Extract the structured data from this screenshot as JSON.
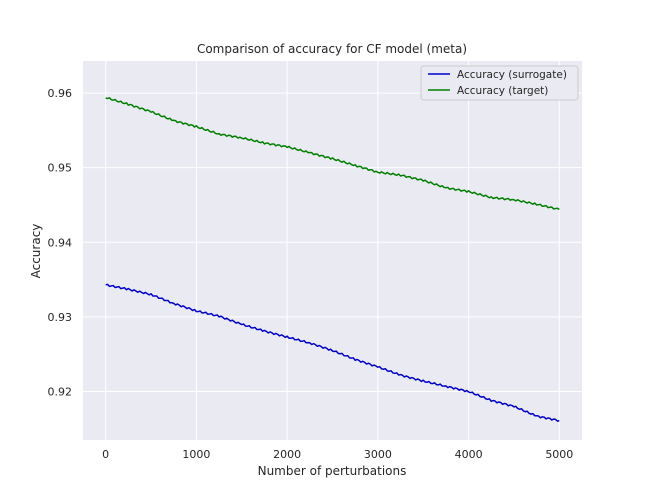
{
  "chart_data": {
    "type": "line",
    "title": "Comparison of accuracy for CF model (meta)",
    "xlabel": "Number of perturbations",
    "ylabel": "Accuracy",
    "xlim": [
      -250,
      5250
    ],
    "ylim": [
      0.9135,
      0.9643
    ],
    "xticks": [
      0,
      1000,
      2000,
      3000,
      4000,
      5000
    ],
    "xtick_labels": [
      "0",
      "1000",
      "2000",
      "3000",
      "4000",
      "5000"
    ],
    "yticks": [
      0.92,
      0.93,
      0.94,
      0.95,
      0.96
    ],
    "ytick_labels": [
      "0.92",
      "0.93",
      "0.94",
      "0.95",
      "0.96"
    ],
    "grid": true,
    "legend_position": "top-right",
    "colors": {
      "background": "#eaeaf2",
      "grid": "#ffffff"
    },
    "series": [
      {
        "name": "Accuracy (surrogate)",
        "color": "#0000cc",
        "x": [
          0,
          250,
          500,
          750,
          1000,
          1250,
          1500,
          1750,
          2000,
          2250,
          2500,
          2750,
          3000,
          3250,
          3500,
          3750,
          4000,
          4250,
          4500,
          4750,
          5000
        ],
        "y": [
          0.9343,
          0.9337,
          0.933,
          0.9318,
          0.9308,
          0.9301,
          0.929,
          0.9281,
          0.9273,
          0.9265,
          0.9255,
          0.9243,
          0.9233,
          0.9222,
          0.9214,
          0.9207,
          0.92,
          0.9188,
          0.918,
          0.9167,
          0.9161
        ]
      },
      {
        "name": "Accuracy (target)",
        "color": "#007f00",
        "x": [
          0,
          250,
          500,
          750,
          1000,
          1250,
          1500,
          1750,
          2000,
          2250,
          2500,
          2750,
          3000,
          3250,
          3500,
          3750,
          4000,
          4250,
          4500,
          4750,
          5000
        ],
        "y": [
          0.9594,
          0.9585,
          0.9575,
          0.9563,
          0.9555,
          0.9545,
          0.954,
          0.9533,
          0.9528,
          0.952,
          0.9512,
          0.9503,
          0.9494,
          0.949,
          0.9483,
          0.9473,
          0.9468,
          0.946,
          0.9457,
          0.9451,
          0.9444
        ]
      }
    ]
  }
}
